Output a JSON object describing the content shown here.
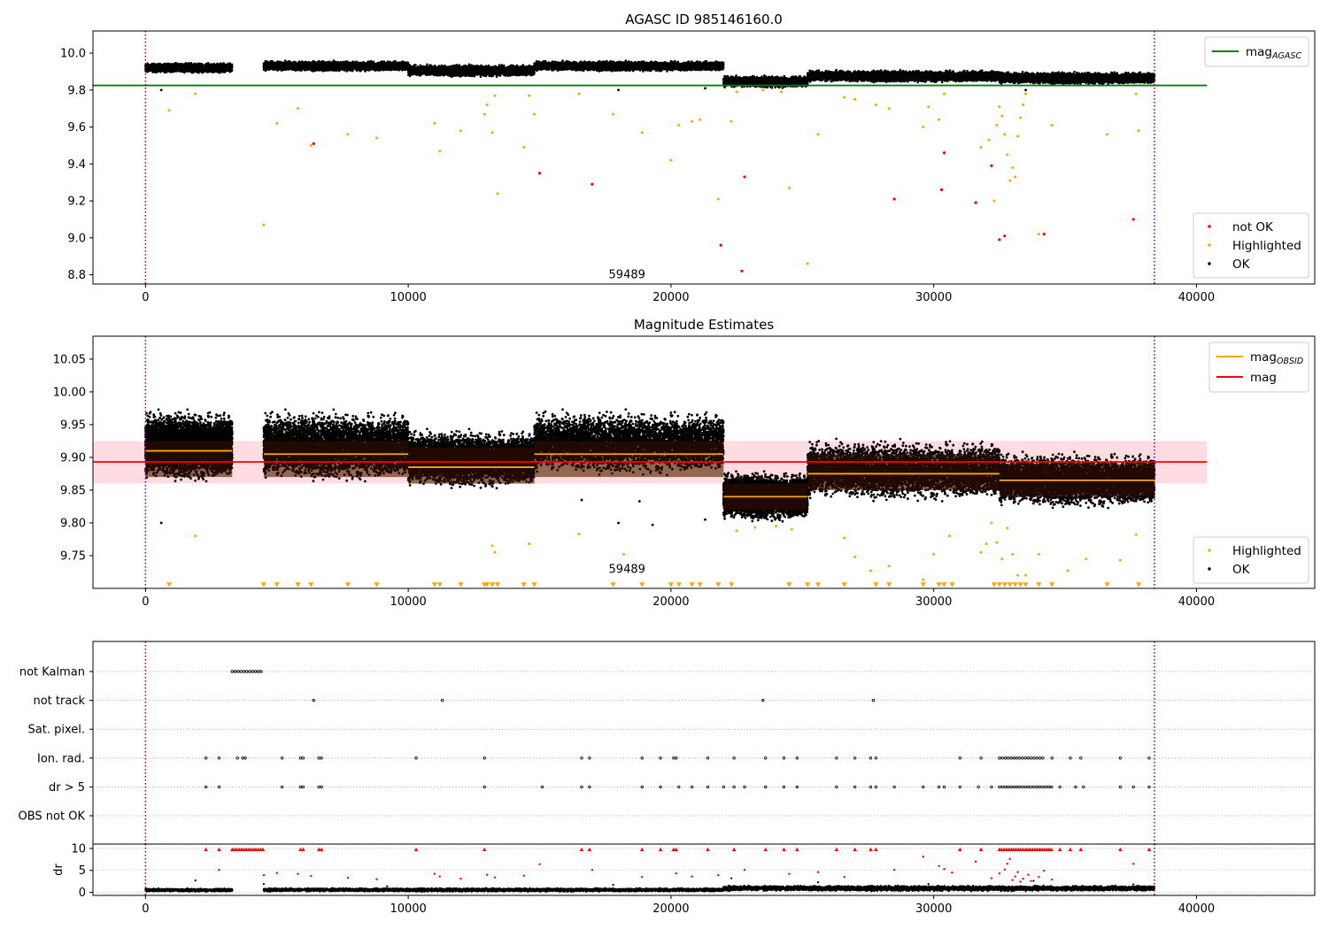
{
  "colors": {
    "ok": "#000000",
    "highlighted": "#ffa500",
    "not_ok": "#ff0000",
    "mag_agasc": "#008000",
    "mag_obsid": "#ffa500",
    "mag": "#ff0000",
    "band_red": "#ffc0cb",
    "band_orange": "#ffc8a0",
    "vline": "#800080",
    "grid": "#b0b0b0"
  },
  "chart_data": [
    {
      "id": "top",
      "type": "scatter",
      "title": "AGASC ID 985146160.0",
      "xlim": [
        -2000,
        44500
      ],
      "ylim": [
        8.75,
        10.12
      ],
      "xticks": [
        0,
        10000,
        20000,
        30000,
        40000
      ],
      "yticks": [
        8.8,
        9.0,
        9.2,
        9.4,
        9.6,
        9.8,
        10.0
      ],
      "yticklabels": [
        "8.8",
        "9.0",
        "9.2",
        "9.4",
        "9.6",
        "9.8",
        "10.0"
      ],
      "vlines": [
        0,
        38400
      ],
      "hline": {
        "name": "mag",
        "sub": "AGASC",
        "y": 9.825,
        "x0": -2000,
        "x1": 40400
      },
      "annotation": {
        "text": "59489",
        "x": 19000,
        "y": 8.8
      },
      "legend_lines": [
        {
          "name": "mag",
          "sub": "AGASC",
          "color": "#008000"
        }
      ],
      "legend_points": [
        {
          "name": "not OK",
          "color": "#ff0000"
        },
        {
          "name": "Highlighted",
          "color": "#ffa500"
        },
        {
          "name": "OK",
          "color": "#000000"
        }
      ],
      "ok_segments": [
        {
          "x0": 0,
          "x1": 3300,
          "ymin": 9.89,
          "ymax": 9.95
        },
        {
          "x0": 4500,
          "x1": 10000,
          "ymin": 9.9,
          "ymax": 9.96
        },
        {
          "x0": 10000,
          "x1": 14800,
          "ymin": 9.87,
          "ymax": 9.94
        },
        {
          "x0": 14800,
          "x1": 22000,
          "ymin": 9.9,
          "ymax": 9.96
        },
        {
          "x0": 22000,
          "x1": 25200,
          "ymin": 9.81,
          "ymax": 9.88
        },
        {
          "x0": 25200,
          "x1": 32500,
          "ymin": 9.84,
          "ymax": 9.91
        },
        {
          "x0": 32500,
          "x1": 38400,
          "ymin": 9.83,
          "ymax": 9.9
        }
      ],
      "ok_outliers": [
        [
          600,
          9.8
        ],
        [
          18000,
          9.8
        ],
        [
          21300,
          9.81
        ],
        [
          33500,
          9.8
        ]
      ],
      "highlighted": [
        [
          900,
          9.69
        ],
        [
          1900,
          9.78
        ],
        [
          4500,
          9.07
        ],
        [
          5000,
          9.62
        ],
        [
          5800,
          9.7
        ],
        [
          6300,
          9.5
        ],
        [
          7700,
          9.56
        ],
        [
          8800,
          9.54
        ],
        [
          11000,
          9.62
        ],
        [
          11200,
          9.47
        ],
        [
          12000,
          9.58
        ],
        [
          12900,
          9.67
        ],
        [
          13000,
          9.72
        ],
        [
          13200,
          9.57
        ],
        [
          13300,
          9.77
        ],
        [
          13400,
          9.24
        ],
        [
          14400,
          9.49
        ],
        [
          14600,
          9.77
        ],
        [
          14800,
          9.67
        ],
        [
          16500,
          9.78
        ],
        [
          17800,
          9.67
        ],
        [
          18900,
          9.57
        ],
        [
          20000,
          9.42
        ],
        [
          20300,
          9.61
        ],
        [
          20800,
          9.63
        ],
        [
          21100,
          9.64
        ],
        [
          21800,
          9.21
        ],
        [
          22300,
          9.63
        ],
        [
          22500,
          9.79
        ],
        [
          23500,
          9.8
        ],
        [
          24200,
          9.79
        ],
        [
          24500,
          9.27
        ],
        [
          25200,
          8.86
        ],
        [
          25600,
          9.56
        ],
        [
          26600,
          9.76
        ],
        [
          27000,
          9.75
        ],
        [
          27800,
          9.72
        ],
        [
          28300,
          9.7
        ],
        [
          29600,
          9.6
        ],
        [
          29800,
          9.71
        ],
        [
          30200,
          9.64
        ],
        [
          30400,
          9.78
        ],
        [
          31800,
          9.49
        ],
        [
          32100,
          9.53
        ],
        [
          32300,
          9.2
        ],
        [
          32400,
          9.61
        ],
        [
          32500,
          9.71
        ],
        [
          32600,
          9.66
        ],
        [
          32700,
          9.56
        ],
        [
          32800,
          9.45
        ],
        [
          32900,
          9.31
        ],
        [
          33000,
          9.38
        ],
        [
          33100,
          9.33
        ],
        [
          33200,
          9.55
        ],
        [
          33300,
          9.65
        ],
        [
          33400,
          9.72
        ],
        [
          33500,
          9.78
        ],
        [
          34000,
          9.02
        ],
        [
          34500,
          9.61
        ],
        [
          36600,
          9.56
        ],
        [
          37700,
          9.78
        ],
        [
          37800,
          9.58
        ]
      ],
      "not_ok": [
        [
          6400,
          9.51
        ],
        [
          15000,
          9.35
        ],
        [
          17000,
          9.29
        ],
        [
          21900,
          8.96
        ],
        [
          22700,
          8.82
        ],
        [
          22800,
          9.33
        ],
        [
          28500,
          9.21
        ],
        [
          30300,
          9.26
        ],
        [
          30400,
          9.46
        ],
        [
          31600,
          9.19
        ],
        [
          32200,
          9.39
        ],
        [
          32500,
          8.99
        ],
        [
          32700,
          9.01
        ],
        [
          34200,
          9.02
        ],
        [
          37600,
          9.1
        ]
      ]
    },
    {
      "id": "mid",
      "type": "scatter",
      "title": "Magnitude Estimates",
      "xlim": [
        -2000,
        44500
      ],
      "ylim": [
        9.7,
        10.085
      ],
      "xticks": [
        0,
        10000,
        20000,
        30000,
        40000
      ],
      "yticks": [
        9.75,
        9.8,
        9.85,
        9.9,
        9.95,
        10.0,
        10.05
      ],
      "yticklabels": [
        "9.75",
        "9.80",
        "9.85",
        "9.90",
        "9.95",
        "10.00",
        "10.05"
      ],
      "vlines": [
        0,
        38400
      ],
      "band_red": {
        "x0": -2000,
        "x1": 40400,
        "y0": 9.86,
        "y1": 9.925
      },
      "obsid_segments": [
        {
          "x0": 0,
          "x1": 3300,
          "y": 9.91,
          "y0": 9.87,
          "y1": 9.925
        },
        {
          "x0": 4500,
          "x1": 10000,
          "y": 9.905,
          "y0": 9.87,
          "y1": 9.925
        },
        {
          "x0": 10000,
          "x1": 14800,
          "y": 9.885,
          "y0": 9.86,
          "y1": 9.915
        },
        {
          "x0": 14800,
          "x1": 22000,
          "y": 9.905,
          "y0": 9.87,
          "y1": 9.925
        },
        {
          "x0": 22000,
          "x1": 25200,
          "y": 9.84,
          "y0": 9.82,
          "y1": 9.86
        },
        {
          "x0": 25200,
          "x1": 32500,
          "y": 9.875,
          "y0": 9.85,
          "y1": 9.905
        },
        {
          "x0": 32500,
          "x1": 38400,
          "y": 9.865,
          "y0": 9.84,
          "y1": 9.89
        }
      ],
      "mag_line": {
        "y": 9.893,
        "x0": -2000,
        "x1": 40400
      },
      "annotation": {
        "text": "59489",
        "x": 19000,
        "y": 9.71
      },
      "legend_lines": [
        {
          "name": "mag",
          "sub": "OBSID",
          "color": "#ffa500"
        },
        {
          "name": "mag",
          "sub": "",
          "color": "#ff0000"
        }
      ],
      "legend_points": [
        {
          "name": "Highlighted",
          "color": "#ffa500"
        },
        {
          "name": "OK",
          "color": "#000000"
        }
      ],
      "ok_segments": [
        {
          "x0": 0,
          "x1": 3300,
          "ymin": 9.86,
          "ymax": 9.975
        },
        {
          "x0": 4500,
          "x1": 10000,
          "ymin": 9.86,
          "ymax": 9.975
        },
        {
          "x0": 10000,
          "x1": 14800,
          "ymin": 9.85,
          "ymax": 9.945
        },
        {
          "x0": 14800,
          "x1": 22000,
          "ymin": 9.87,
          "ymax": 9.975
        },
        {
          "x0": 22000,
          "x1": 25200,
          "ymin": 9.8,
          "ymax": 9.88
        },
        {
          "x0": 25200,
          "x1": 32500,
          "ymin": 9.83,
          "ymax": 9.93
        },
        {
          "x0": 32500,
          "x1": 38400,
          "ymin": 9.82,
          "ymax": 9.91
        }
      ],
      "ok_outliers": [
        [
          600,
          9.8
        ],
        [
          16600,
          9.835
        ],
        [
          18000,
          9.8
        ],
        [
          18800,
          9.833
        ],
        [
          19300,
          9.797
        ],
        [
          21300,
          9.805
        ]
      ],
      "highlighted": [
        [
          1900,
          9.78
        ],
        [
          13200,
          9.765
        ],
        [
          13300,
          9.755
        ],
        [
          14600,
          9.768
        ],
        [
          16500,
          9.783
        ],
        [
          18200,
          9.752
        ],
        [
          22500,
          9.788
        ],
        [
          23200,
          9.793
        ],
        [
          24000,
          9.795
        ],
        [
          24600,
          9.79
        ],
        [
          26600,
          9.777
        ],
        [
          27000,
          9.748
        ],
        [
          27600,
          9.727
        ],
        [
          28300,
          9.734
        ],
        [
          29600,
          9.713
        ],
        [
          30000,
          9.752
        ],
        [
          30600,
          9.78
        ],
        [
          31800,
          9.755
        ],
        [
          32000,
          9.768
        ],
        [
          32200,
          9.8
        ],
        [
          32400,
          9.77
        ],
        [
          32600,
          9.745
        ],
        [
          32800,
          9.792
        ],
        [
          33000,
          9.752
        ],
        [
          33200,
          9.72
        ],
        [
          33500,
          9.72
        ],
        [
          34000,
          9.752
        ],
        [
          35100,
          9.727
        ],
        [
          35800,
          9.745
        ],
        [
          37100,
          9.743
        ],
        [
          37700,
          9.782
        ]
      ],
      "triangles_y": 9.705,
      "triangles_x": [
        900,
        4500,
        5000,
        5800,
        6300,
        7700,
        8800,
        11000,
        11200,
        12000,
        12900,
        13000,
        13200,
        13400,
        14400,
        14800,
        17800,
        18900,
        20000,
        20300,
        20800,
        21100,
        21800,
        22300,
        24500,
        25200,
        25600,
        26600,
        27800,
        28300,
        29600,
        30200,
        30400,
        30700,
        32300,
        32500,
        32700,
        32900,
        33100,
        33300,
        33500,
        34000,
        34500,
        36600,
        37800
      ]
    },
    {
      "id": "flags",
      "type": "scatter",
      "xlim": [
        -2000,
        44500
      ],
      "categories": [
        "not Kalman",
        "not track",
        "Sat. pixel.",
        "Ion. rad.",
        "dr > 5",
        "OBS not OK"
      ],
      "vlines": [
        0,
        38400
      ],
      "rows": {
        "not Kalman": {
          "ranges": [
            [
              3300,
              4500
            ]
          ],
          "points": []
        },
        "not track": {
          "ranges": [],
          "points": [
            6400,
            11300,
            23500,
            27700
          ]
        },
        "Sat. pixel.": {
          "ranges": [],
          "points": []
        },
        "Ion. rad.": {
          "ranges": [
            [
              32500,
              34200
            ]
          ],
          "points": [
            2300,
            2800,
            3500,
            3700,
            3800,
            5200,
            5900,
            6000,
            6600,
            6700,
            10300,
            12900,
            16600,
            16900,
            18900,
            19600,
            20100,
            20200,
            21400,
            22400,
            23600,
            24300,
            24800,
            26300,
            27000,
            27600,
            27800,
            31000,
            31800,
            34500,
            35200,
            35600,
            37100,
            38200
          ]
        },
        "dr > 5": {
          "ranges": [
            [
              32500,
              34500
            ]
          ],
          "points": [
            2300,
            2800,
            5200,
            5900,
            6000,
            6600,
            6700,
            12900,
            15100,
            16600,
            16900,
            18900,
            19600,
            20300,
            20800,
            21400,
            22000,
            22400,
            22800,
            23600,
            24300,
            24800,
            26300,
            27000,
            27600,
            27800,
            28500,
            29600,
            30200,
            30400,
            31000,
            31700,
            32200,
            34800,
            35400,
            35700,
            37100,
            37600,
            38200
          ]
        },
        "OBS not OK": {
          "ranges": [],
          "points": []
        }
      }
    },
    {
      "id": "dr",
      "type": "scatter",
      "ylabel": "dr",
      "xlim": [
        -2000,
        44500
      ],
      "ylim": [
        -0.7,
        11
      ],
      "xticks": [
        0,
        10000,
        20000,
        30000,
        40000
      ],
      "yticks": [
        0,
        5,
        10
      ],
      "yticklabels": [
        "0",
        "5",
        "10"
      ],
      "vlines": [
        0,
        38400
      ],
      "baseline_segments": [
        {
          "x0": 0,
          "x1": 3300,
          "ymin": 0.1,
          "ymax": 0.9
        },
        {
          "x0": 4500,
          "x1": 22000,
          "ymin": 0.1,
          "ymax": 1.0
        },
        {
          "x0": 22000,
          "x1": 38400,
          "ymin": 0.2,
          "ymax": 1.6
        }
      ],
      "baseline_outliers": [
        [
          1900,
          2.7
        ],
        [
          4500,
          1.9
        ],
        [
          9200,
          1.4
        ],
        [
          17800,
          1.7
        ],
        [
          22300,
          3.2
        ],
        [
          25600,
          2.3
        ],
        [
          29800,
          1.9
        ],
        [
          33800,
          2.6
        ],
        [
          37600,
          1.8
        ]
      ],
      "red_top_y": 9.8,
      "red_top_ranges": [
        [
          3300,
          4500
        ],
        [
          32500,
          34500
        ]
      ],
      "red_top_points": [
        2300,
        2800,
        5900,
        6000,
        6600,
        6700,
        10300,
        12900,
        16600,
        16900,
        18900,
        19600,
        20100,
        20200,
        21400,
        22400,
        23600,
        24300,
        24800,
        26300,
        27000,
        27600,
        27800,
        31000,
        31800,
        34800,
        35200,
        35600,
        37100,
        38200
      ],
      "red_scatter": [
        [
          2800,
          5.1
        ],
        [
          4500,
          3.9
        ],
        [
          5000,
          4.4
        ],
        [
          5800,
          4.2
        ],
        [
          6300,
          3.7
        ],
        [
          7700,
          3.3
        ],
        [
          8800,
          3.0
        ],
        [
          11000,
          4.2
        ],
        [
          11200,
          3.6
        ],
        [
          12000,
          3.1
        ],
        [
          13000,
          4.0
        ],
        [
          13300,
          3.4
        ],
        [
          14400,
          3.8
        ],
        [
          15000,
          6.4
        ],
        [
          17000,
          5.1
        ],
        [
          18900,
          3.5
        ],
        [
          20200,
          4.3
        ],
        [
          20800,
          3.6
        ],
        [
          21800,
          3.9
        ],
        [
          22800,
          5.1
        ],
        [
          24500,
          4.2
        ],
        [
          25600,
          4.6
        ],
        [
          26600,
          3.5
        ],
        [
          28500,
          5.1
        ],
        [
          29600,
          8.1
        ],
        [
          30200,
          6.0
        ],
        [
          30400,
          5.3
        ],
        [
          30700,
          4.5
        ],
        [
          31600,
          7.0
        ],
        [
          32200,
          3.2
        ],
        [
          32500,
          4.3
        ],
        [
          32700,
          5.2
        ],
        [
          32800,
          6.5
        ],
        [
          32900,
          7.6
        ],
        [
          33000,
          2.8
        ],
        [
          33100,
          3.6
        ],
        [
          33200,
          4.6
        ],
        [
          33300,
          2.4
        ],
        [
          33400,
          3.1
        ],
        [
          33600,
          4.0
        ],
        [
          33700,
          2.6
        ],
        [
          34000,
          3.5
        ],
        [
          34200,
          4.9
        ],
        [
          34500,
          2.9
        ],
        [
          37600,
          6.5
        ]
      ]
    }
  ]
}
